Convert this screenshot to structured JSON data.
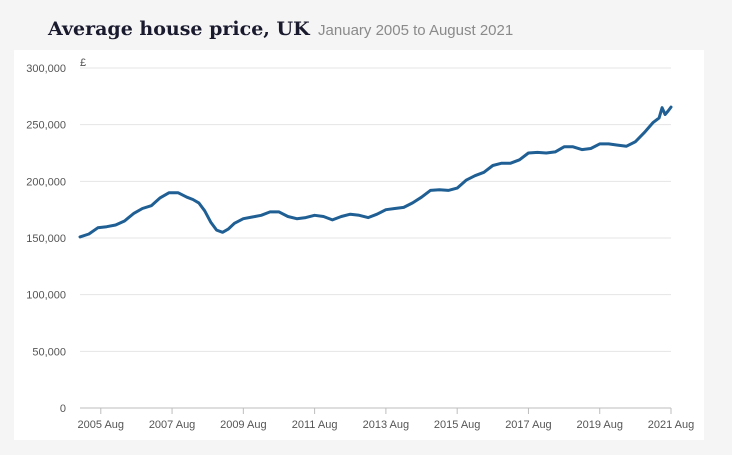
{
  "header": {
    "title": "Average house price, UK",
    "subtitle": "January 2005 to August 2021"
  },
  "colors": {
    "line": "#1f5f94",
    "grid": "#e4e4e4",
    "axis": "#bdbdbd"
  },
  "chart_data": {
    "type": "line",
    "title": "Average house price, UK",
    "subtitle": "January 2005 to August 2021",
    "ylabel": "£",
    "xlabel": "",
    "ylim": [
      0,
      300000
    ],
    "yticks": [
      0,
      50000,
      100000,
      150000,
      200000,
      250000,
      300000
    ],
    "ytick_labels": [
      "0",
      "50,000",
      "100,000",
      "150,000",
      "200,000",
      "250,000",
      "300,000"
    ],
    "xlim": [
      "2005-01",
      "2021-08"
    ],
    "xtick_labels": [
      {
        "date": "2005-08",
        "label": "2005 Aug"
      },
      {
        "date": "2007-08",
        "label": "2007 Aug"
      },
      {
        "date": "2009-08",
        "label": "2009 Aug"
      },
      {
        "date": "2011-08",
        "label": "2011 Aug"
      },
      {
        "date": "2013-08",
        "label": "2013 Aug"
      },
      {
        "date": "2015-08",
        "label": "2015 Aug"
      },
      {
        "date": "2017-08",
        "label": "2017 Aug"
      },
      {
        "date": "2019-08",
        "label": "2019 Aug"
      },
      {
        "date": "2021-08",
        "label": "2021 Aug"
      }
    ],
    "grid": true,
    "series": [
      {
        "points": [
          [
            "2005-01",
            151000
          ],
          [
            "2005-04",
            153500
          ],
          [
            "2005-07",
            159000
          ],
          [
            "2005-10",
            160000
          ],
          [
            "2006-01",
            161500
          ],
          [
            "2006-04",
            165000
          ],
          [
            "2006-07",
            171500
          ],
          [
            "2006-10",
            176000
          ],
          [
            "2007-01",
            178500
          ],
          [
            "2007-04",
            185500
          ],
          [
            "2007-07",
            190000
          ],
          [
            "2007-10",
            190000
          ],
          [
            "2008-01",
            186000
          ],
          [
            "2008-03",
            184000
          ],
          [
            "2008-05",
            181000
          ],
          [
            "2008-07",
            174000
          ],
          [
            "2008-09",
            164000
          ],
          [
            "2008-11",
            157000
          ],
          [
            "2009-01",
            155000
          ],
          [
            "2009-03",
            158000
          ],
          [
            "2009-05",
            163000
          ],
          [
            "2009-08",
            167000
          ],
          [
            "2009-11",
            168500
          ],
          [
            "2010-02",
            170000
          ],
          [
            "2010-05",
            173000
          ],
          [
            "2010-08",
            173000
          ],
          [
            "2010-11",
            169000
          ],
          [
            "2011-02",
            167000
          ],
          [
            "2011-05",
            168000
          ],
          [
            "2011-08",
            170000
          ],
          [
            "2011-11",
            169000
          ],
          [
            "2012-02",
            166000
          ],
          [
            "2012-05",
            169000
          ],
          [
            "2012-08",
            171000
          ],
          [
            "2012-11",
            170000
          ],
          [
            "2013-02",
            168000
          ],
          [
            "2013-05",
            171000
          ],
          [
            "2013-08",
            175000
          ],
          [
            "2013-11",
            176000
          ],
          [
            "2014-02",
            177000
          ],
          [
            "2014-05",
            181000
          ],
          [
            "2014-08",
            186000
          ],
          [
            "2014-11",
            192000
          ],
          [
            "2015-02",
            192500
          ],
          [
            "2015-05",
            192000
          ],
          [
            "2015-08",
            194000
          ],
          [
            "2015-11",
            201000
          ],
          [
            "2016-02",
            205000
          ],
          [
            "2016-05",
            208000
          ],
          [
            "2016-08",
            214000
          ],
          [
            "2016-11",
            216000
          ],
          [
            "2017-02",
            216000
          ],
          [
            "2017-05",
            219000
          ],
          [
            "2017-08",
            225000
          ],
          [
            "2017-11",
            225500
          ],
          [
            "2018-02",
            225000
          ],
          [
            "2018-05",
            226000
          ],
          [
            "2018-08",
            230500
          ],
          [
            "2018-11",
            230500
          ],
          [
            "2019-02",
            228000
          ],
          [
            "2019-05",
            229000
          ],
          [
            "2019-08",
            233000
          ],
          [
            "2019-11",
            233000
          ],
          [
            "2020-02",
            232000
          ],
          [
            "2020-05",
            231000
          ],
          [
            "2020-08",
            235000
          ],
          [
            "2020-11",
            243000
          ],
          [
            "2021-02",
            252000
          ],
          [
            "2021-04",
            256000
          ],
          [
            "2021-05",
            265000
          ],
          [
            "2021-06",
            259000
          ],
          [
            "2021-07",
            262000
          ],
          [
            "2021-08",
            265500
          ]
        ]
      }
    ]
  }
}
